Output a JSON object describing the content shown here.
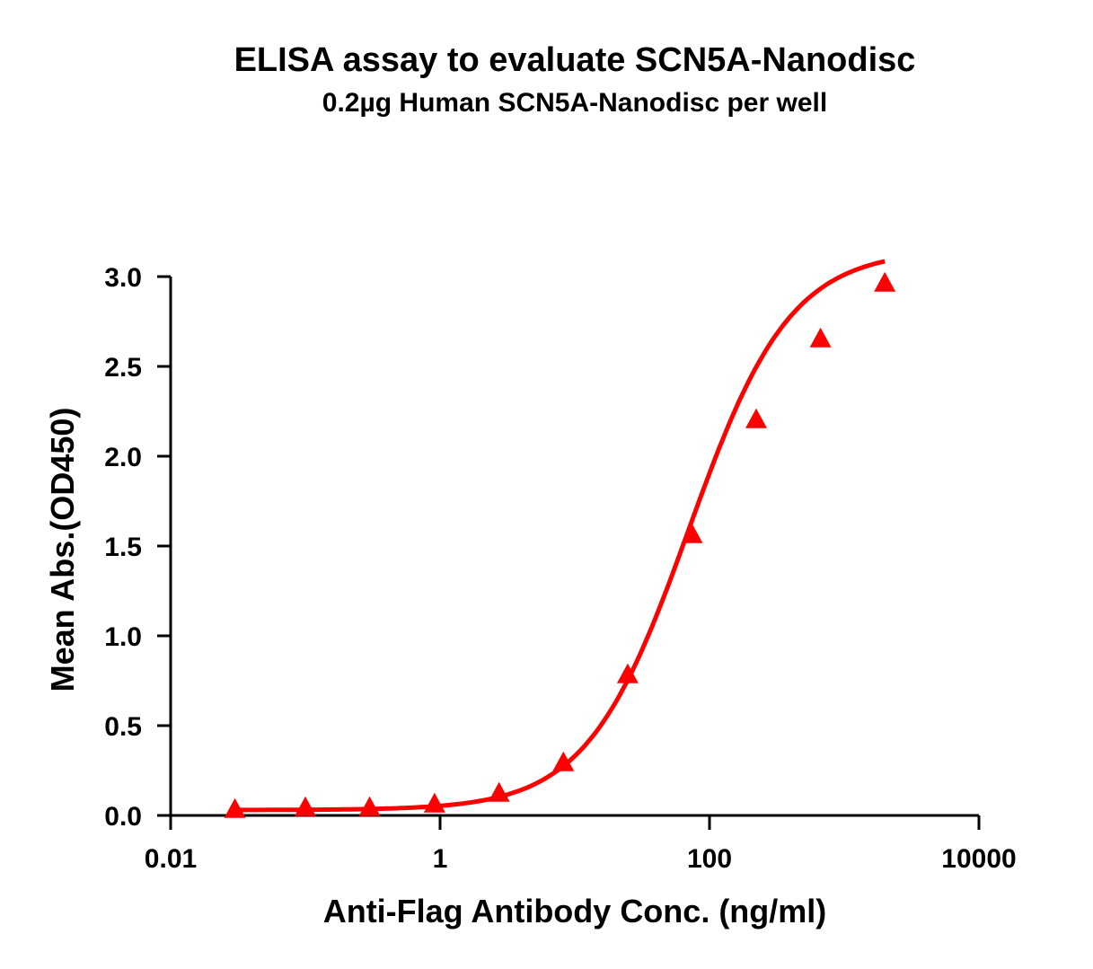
{
  "chart_data": {
    "type": "scatter",
    "title": "ELISA assay to evaluate SCN5A-Nanodisc",
    "subtitle": "0.2µg Human SCN5A-Nanodisc per well",
    "xlabel": "Anti-Flag Antibody Conc. (ng/ml)",
    "ylabel": "Mean Abs.(OD450)",
    "xscale": "log",
    "xlim": [
      0.01,
      10000
    ],
    "ylim": [
      0,
      3.0
    ],
    "x_ticks": [
      "0.01",
      "1",
      "100",
      "10000"
    ],
    "y_ticks": [
      "0.0",
      "0.5",
      "1.0",
      "1.5",
      "2.0",
      "2.5",
      "3.0"
    ],
    "grid": false,
    "legend": null,
    "series": [
      {
        "name": "SCN5A-Nanodisc",
        "color": "#ff0000",
        "marker": "triangle",
        "fit": "4PL sigmoid curve",
        "x": [
          0.03,
          0.1,
          0.3,
          0.91,
          2.74,
          8.23,
          24.7,
          74.1,
          222.2,
          666.7,
          2000
        ],
        "y": [
          0.03,
          0.04,
          0.04,
          0.06,
          0.12,
          0.29,
          0.78,
          1.56,
          2.2,
          2.65,
          2.96
        ]
      }
    ]
  }
}
